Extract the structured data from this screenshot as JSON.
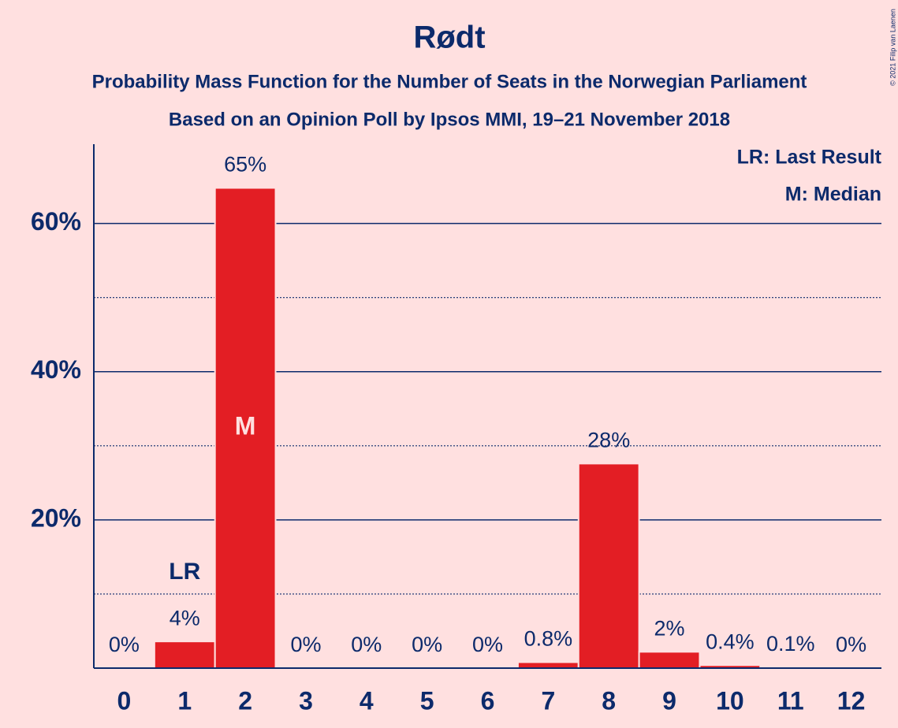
{
  "chart_data": {
    "type": "bar",
    "title": "Rødt",
    "subtitle": "Probability Mass Function for the Number of Seats in the Norwegian Parliament",
    "subtitle2": "Based on an Opinion Poll by Ipsos MMI, 19–21 November 2018",
    "copyright": "© 2021 Filip van Laenen",
    "legend": [
      "LR: Last Result",
      "M: Median"
    ],
    "categories": [
      0,
      1,
      2,
      3,
      4,
      5,
      6,
      7,
      8,
      9,
      10,
      11,
      12
    ],
    "values": [
      0,
      3.6,
      64.8,
      0,
      0,
      0,
      0,
      0.8,
      27.6,
      2.2,
      0.4,
      0.1,
      0
    ],
    "value_labels": [
      "0%",
      "4%",
      "65%",
      "0%",
      "0%",
      "0%",
      "0%",
      "0.8%",
      "28%",
      "2%",
      "0.4%",
      "0.1%",
      "0%"
    ],
    "annotations": [
      {
        "text": "LR",
        "category": 1
      },
      {
        "text": "M",
        "category": 2
      }
    ],
    "color": "#e31e24",
    "ylim": [
      0,
      70.7
    ],
    "yticks": [
      {
        "value": 20,
        "label": "20%"
      },
      {
        "value": 40,
        "label": "40%"
      },
      {
        "value": 60,
        "label": "60%"
      }
    ],
    "minor_yticks": [
      10,
      30,
      50
    ],
    "grid": true
  }
}
